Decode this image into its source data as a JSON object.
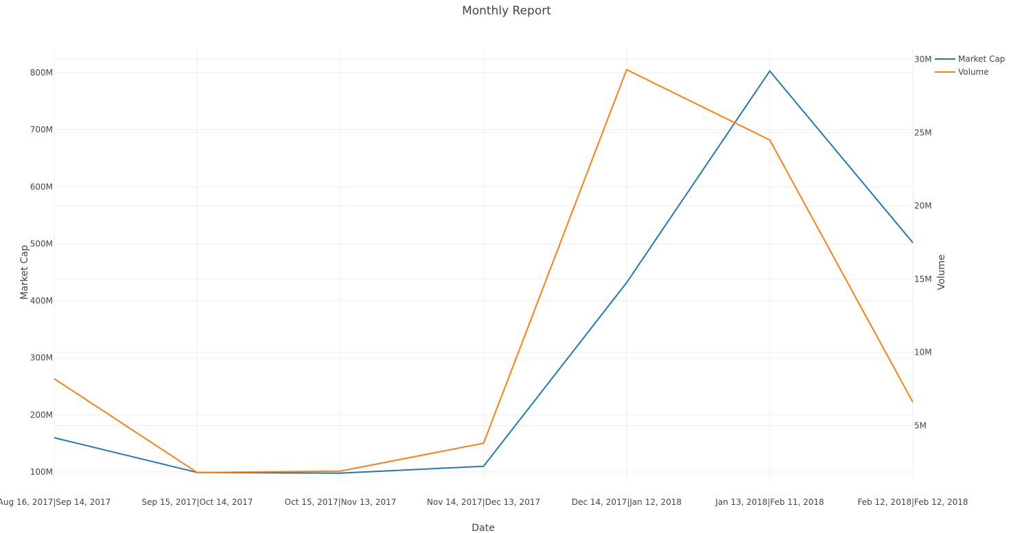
{
  "chart_data": {
    "type": "line",
    "title": "Monthly Report",
    "xlabel": "Date",
    "ylabel": "Market Cap",
    "y2label": "Volume",
    "grid": true,
    "legend_position": "top-right",
    "categories": [
      "Aug 16, 2017|Sep 14, 2017",
      "Sep 15, 2017|Oct 14, 2017",
      "Oct 15, 2017|Nov 13, 2017",
      "Nov 14, 2017|Dec 13, 2017",
      "Dec 14, 2017|Jan 12, 2018",
      "Jan 13, 2018|Feb 11, 2018",
      "Feb 12, 2018|Feb 12, 2018"
    ],
    "y_axis": {
      "range": [
        100000000,
        800000000
      ],
      "ticks": [
        100000000,
        200000000,
        300000000,
        400000000,
        500000000,
        600000000,
        700000000,
        800000000
      ],
      "tick_labels": [
        "100M",
        "200M",
        "300M",
        "400M",
        "500M",
        "600M",
        "700M",
        "800M"
      ]
    },
    "y2_axis": {
      "range": [
        5000000,
        30000000
      ],
      "ticks": [
        5000000,
        10000000,
        15000000,
        20000000,
        25000000,
        30000000
      ],
      "tick_labels": [
        "5M",
        "10M",
        "15M",
        "20M",
        "25M",
        "30M"
      ]
    },
    "series": [
      {
        "name": "Market Cap",
        "axis": "y",
        "color": "#1f77b4",
        "values": [
          160000000,
          99000000,
          98000000,
          110000000,
          432000000,
          803000000,
          502000000
        ]
      },
      {
        "name": "Volume",
        "axis": "y2",
        "color": "#ff7f0e",
        "values": [
          8200000,
          1800000,
          1900000,
          3800000,
          29300000,
          24500000,
          6600000
        ]
      }
    ]
  }
}
